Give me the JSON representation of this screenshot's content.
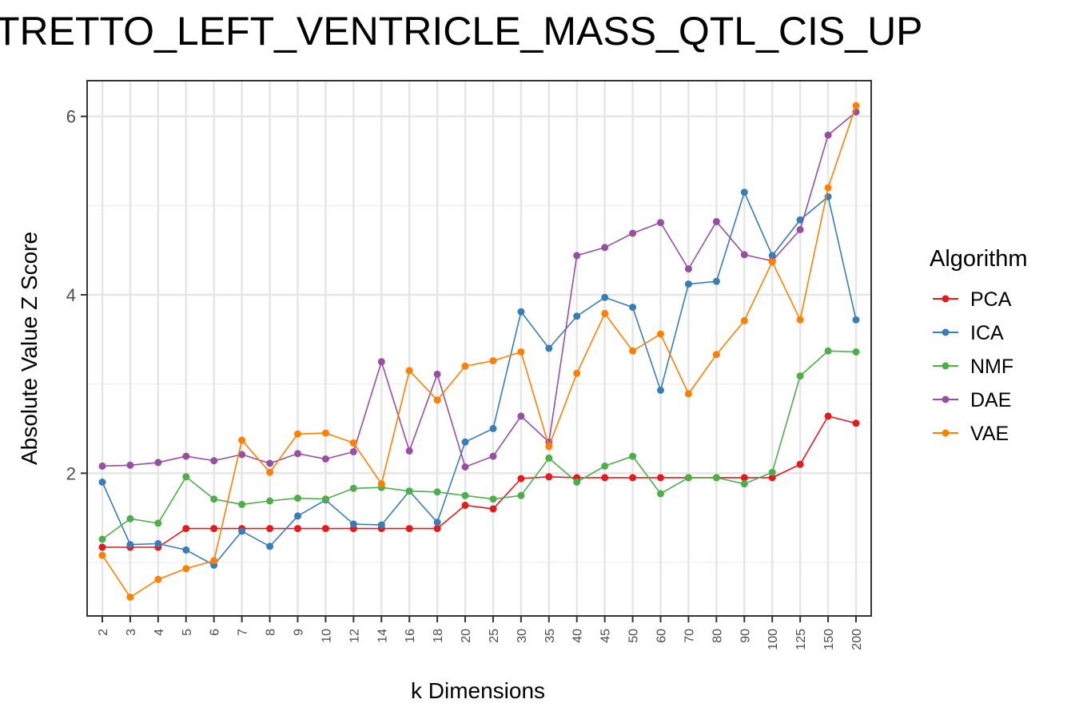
{
  "chart_data": {
    "type": "line",
    "title": "TRETTO_LEFT_VENTRICLE_MASS_QTL_CIS_UP",
    "xlabel": "k Dimensions",
    "ylabel": "Absolute Value Z Score",
    "categories": [
      "2",
      "3",
      "4",
      "5",
      "6",
      "7",
      "8",
      "9",
      "10",
      "12",
      "14",
      "16",
      "18",
      "20",
      "25",
      "30",
      "35",
      "40",
      "45",
      "50",
      "60",
      "70",
      "80",
      "90",
      "100",
      "125",
      "150",
      "200"
    ],
    "yticks": [
      "2",
      "4",
      "6"
    ],
    "ylim": [
      0.4,
      6.4
    ],
    "grid": true,
    "legend": {
      "title": "Algorithm",
      "position": "right"
    },
    "series": [
      {
        "name": "PCA",
        "color": "#e41a1c",
        "values": [
          1.17,
          1.17,
          1.17,
          1.38,
          1.38,
          1.38,
          1.38,
          1.38,
          1.38,
          1.38,
          1.38,
          1.38,
          1.38,
          1.64,
          1.6,
          1.94,
          1.96,
          1.95,
          1.95,
          1.95,
          1.95,
          1.95,
          1.95,
          1.95,
          1.95,
          2.1,
          2.64,
          2.56
        ]
      },
      {
        "name": "ICA",
        "color": "#377eb8",
        "values": [
          1.9,
          1.2,
          1.21,
          1.14,
          0.97,
          1.35,
          1.18,
          1.52,
          1.7,
          1.43,
          1.42,
          1.8,
          1.45,
          2.35,
          2.5,
          3.81,
          3.4,
          3.76,
          3.97,
          3.86,
          2.93,
          4.12,
          4.15,
          5.15,
          4.44,
          4.84,
          5.1,
          3.72
        ]
      },
      {
        "name": "NMF",
        "color": "#4daf4a",
        "values": [
          1.26,
          1.49,
          1.44,
          1.96,
          1.71,
          1.65,
          1.69,
          1.72,
          1.71,
          1.83,
          1.84,
          1.8,
          1.79,
          1.75,
          1.71,
          1.75,
          2.17,
          1.9,
          2.08,
          2.19,
          1.77,
          1.95,
          1.95,
          1.88,
          2.01,
          3.09,
          3.37,
          3.36
        ]
      },
      {
        "name": "DAE",
        "color": "#984ea3",
        "values": [
          2.08,
          2.09,
          2.12,
          2.19,
          2.14,
          2.21,
          2.11,
          2.22,
          2.16,
          2.24,
          3.25,
          2.25,
          3.11,
          2.07,
          2.19,
          2.64,
          2.35,
          4.44,
          4.53,
          4.69,
          4.81,
          4.29,
          4.82,
          4.45,
          4.38,
          4.73,
          5.79,
          6.05
        ]
      },
      {
        "name": "VAE",
        "color": "#ff7f00",
        "values": [
          1.08,
          0.61,
          0.81,
          0.93,
          1.02,
          2.37,
          2.01,
          2.44,
          2.45,
          2.34,
          1.88,
          3.15,
          2.82,
          3.2,
          3.26,
          3.36,
          2.3,
          3.12,
          3.79,
          3.37,
          3.56,
          2.89,
          3.33,
          3.71,
          4.37,
          3.72,
          5.2,
          6.12
        ]
      }
    ]
  }
}
